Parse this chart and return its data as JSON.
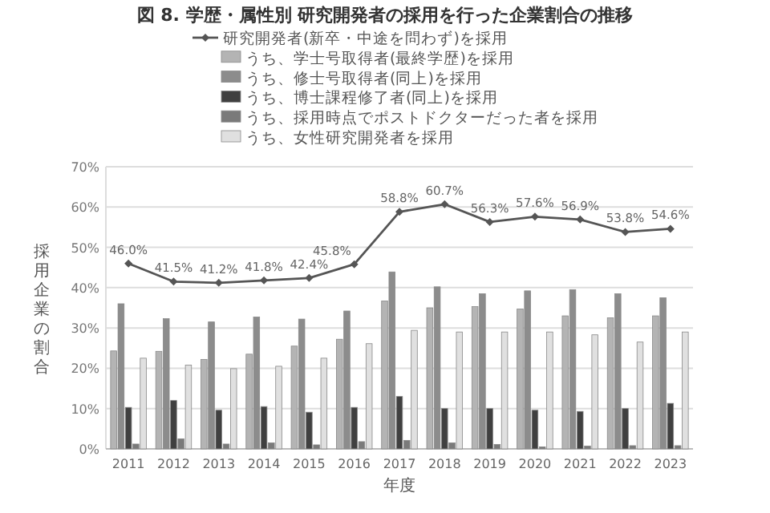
{
  "chart_data": {
    "type": "bar",
    "title": "図 8. 学歴・属性別 研究開発者の採用を行った企業割合の推移",
    "xlabel": "年度",
    "ylabel": "採用企業の割合",
    "categories": [
      "2011",
      "2012",
      "2013",
      "2014",
      "2015",
      "2016",
      "2017",
      "2018",
      "2019",
      "2020",
      "2021",
      "2022",
      "2023"
    ],
    "series": [
      {
        "name": "研究開発者(新卒・中途を問わず)を採用",
        "type": "line",
        "color": "#555555",
        "marker": "diamond",
        "values": [
          46.0,
          41.5,
          41.2,
          41.8,
          42.4,
          45.8,
          58.8,
          60.7,
          56.3,
          57.6,
          56.9,
          53.8,
          54.6
        ],
        "value_labels": [
          "46.0%",
          "41.5%",
          "41.2%",
          "41.8%",
          "42.4%",
          "45.8%",
          "58.8%",
          "60.7%",
          "56.3%",
          "57.6%",
          "56.9%",
          "53.8%",
          "54.6%"
        ]
      },
      {
        "name": "うち、学士号取得者(最終学歴)を採用",
        "color": "#b4b4b4",
        "values": [
          24.3,
          24.2,
          22.2,
          23.5,
          25.5,
          27.2,
          36.7,
          35.0,
          35.3,
          34.7,
          33.0,
          32.5,
          33.0
        ]
      },
      {
        "name": "うち、修士号取得者(同上)を採用",
        "color": "#8c8c8c",
        "values": [
          36.0,
          32.3,
          31.5,
          32.7,
          32.2,
          34.2,
          43.9,
          40.2,
          38.5,
          39.2,
          39.5,
          38.5,
          37.5
        ]
      },
      {
        "name": "うち、博士課程修了者(同上)を採用",
        "color": "#404040",
        "values": [
          10.3,
          12.0,
          9.6,
          10.5,
          9.1,
          10.3,
          13.0,
          10.0,
          10.0,
          9.6,
          9.3,
          10.0,
          11.3
        ]
      },
      {
        "name": "うち、採用時点でポストドクターだった者を採用",
        "color": "#7a7a7a",
        "values": [
          1.2,
          2.5,
          1.2,
          1.5,
          1.0,
          1.8,
          2.1,
          1.5,
          1.1,
          0.5,
          0.7,
          0.8,
          0.8
        ]
      },
      {
        "name": "うち、女性研究開発者を採用",
        "color": "#e0e0e0",
        "values": [
          22.5,
          20.8,
          19.9,
          20.5,
          22.5,
          26.1,
          29.4,
          29.0,
          29.0,
          29.0,
          28.3,
          26.5,
          29.0
        ]
      }
    ],
    "ylim": [
      0,
      70
    ],
    "yticks": [
      {
        "value": 0,
        "label": "0%"
      },
      {
        "value": 10,
        "label": "10%"
      },
      {
        "value": 20,
        "label": "20%"
      },
      {
        "value": 30,
        "label": "30%"
      },
      {
        "value": 40,
        "label": "40%"
      },
      {
        "value": 50,
        "label": "50%"
      },
      {
        "value": 60,
        "label": "60%"
      },
      {
        "value": 70,
        "label": "70%"
      }
    ],
    "grid": "y",
    "legend": "top"
  }
}
